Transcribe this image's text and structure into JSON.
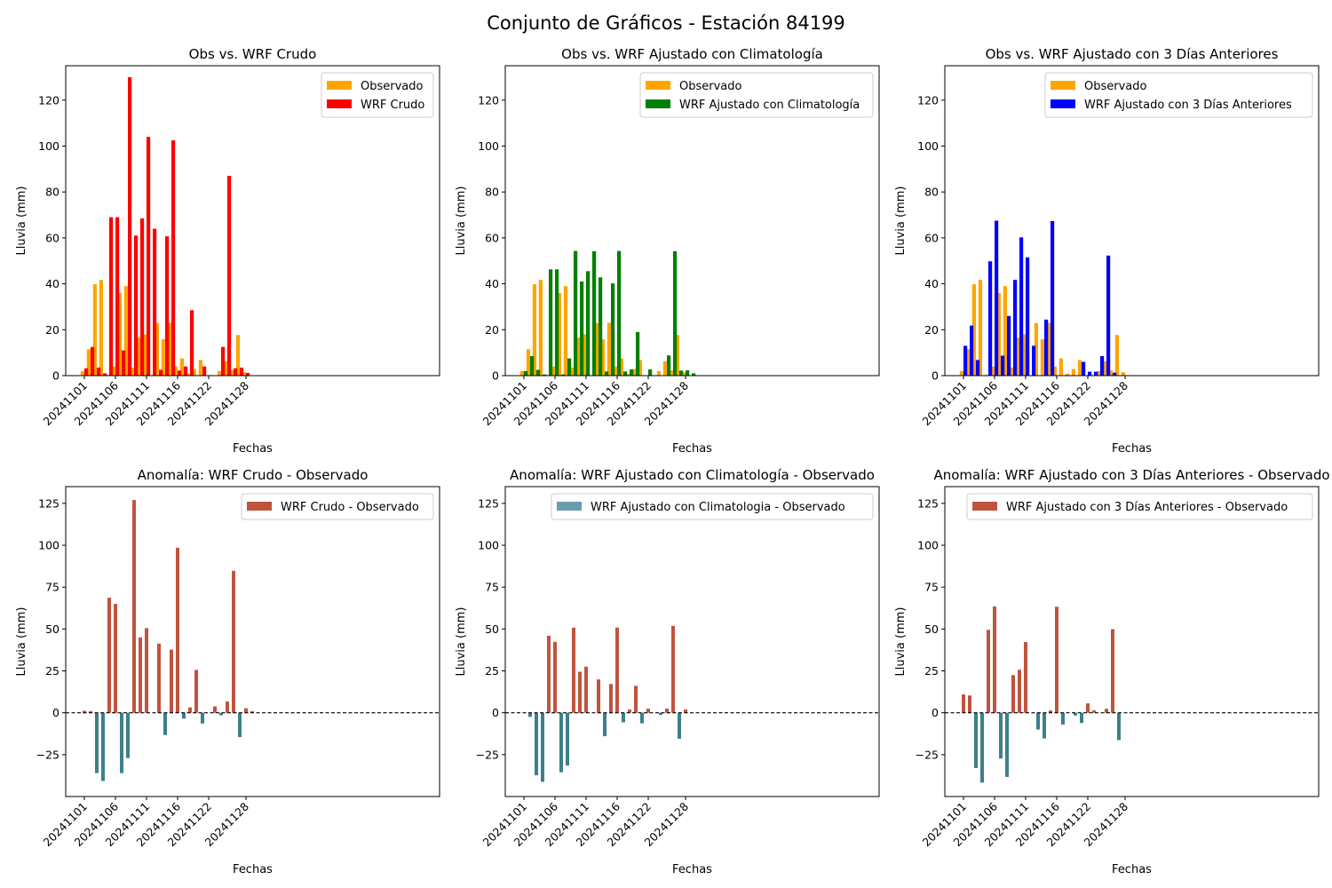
{
  "page": {
    "title": "Conjunto de Gráficos - Estación 84199"
  },
  "colors": {
    "observado": "#FFA500",
    "wrf_crudo": "#FF0000",
    "wrf_clima": "#008000",
    "wrf_3dias": "#0000FF",
    "anomaly_positive": "#C0533E",
    "anomaly_negative": "#3D7F8C",
    "legend_swatch_clima_anomaly": "#6A9DAB"
  },
  "chart_data": [
    {
      "type": "bar",
      "title": "Obs vs. WRF Crudo",
      "xlabel": "Fechas",
      "ylabel": "Lluvia (mm)",
      "ylim": [
        0,
        135
      ],
      "yticks": [
        "0",
        "20",
        "40",
        "60",
        "80",
        "100",
        "120"
      ],
      "xtick_labels": [
        "20241101",
        "20241106",
        "20241111",
        "20241116",
        "20241122",
        "20241128"
      ],
      "legend_position": "top-right",
      "series": [
        {
          "name": "Observado",
          "color_key": "observado",
          "values": [
            2,
            11.5,
            39.8,
            41.7,
            0.3,
            4,
            36,
            39,
            3.5,
            16.5,
            18,
            0,
            22.9,
            15.8,
            23,
            4,
            7.5,
            0.8,
            2.9,
            6.8,
            0,
            0.2,
            2,
            6.3,
            2.3,
            17.7,
            1.5,
            0
          ]
        },
        {
          "name": "WRF Crudo",
          "color_key": "wrf_crudo",
          "values": [
            3.2,
            12.5,
            3.5,
            1,
            69,
            69,
            11,
            130,
            61,
            68.5,
            104,
            64,
            2.5,
            60.7,
            102.5,
            2.2,
            4,
            28.5,
            0,
            4,
            0.2,
            0,
            12.5,
            87,
            3.2,
            3.5,
            1.2,
            0
          ]
        }
      ]
    },
    {
      "type": "bar",
      "title": "Obs vs. WRF Ajustado con Climatología",
      "xlabel": "Fechas",
      "ylabel": "Lluvia (mm)",
      "ylim": [
        0,
        135
      ],
      "yticks": [
        "0",
        "20",
        "40",
        "60",
        "80",
        "100",
        "120"
      ],
      "xtick_labels": [
        "20241101",
        "20241106",
        "20241111",
        "20241116",
        "20241122",
        "20241128"
      ],
      "legend_position": "top-right",
      "series": [
        {
          "name": "Observado",
          "color_key": "observado",
          "values": [
            2,
            11.5,
            39.8,
            41.7,
            0.3,
            4,
            36,
            39,
            3.5,
            16.5,
            18,
            0,
            22.9,
            15.8,
            23,
            4,
            7.5,
            0.8,
            2.9,
            6.8,
            0,
            0.2,
            2,
            6.3,
            2.3,
            17.7,
            1.5,
            0
          ]
        },
        {
          "name": "WRF Ajustado con Climatología",
          "color_key": "wrf_clima",
          "values": [
            2,
            8.5,
            2.5,
            0.5,
            46.3,
            46.3,
            0.5,
            7.5,
            54.3,
            41,
            45.5,
            54.2,
            42.8,
            1.8,
            40.2,
            54.3,
            1.8,
            2.7,
            19,
            0,
            2.7,
            0,
            0,
            8.8,
            54.2,
            2.2,
            2.3,
            1
          ]
        }
      ]
    },
    {
      "type": "bar",
      "title": "Obs vs. WRF Ajustado con 3 Días Anteriores",
      "xlabel": "Fechas",
      "ylabel": "Lluvia (mm)",
      "ylim": [
        0,
        135
      ],
      "yticks": [
        "0",
        "20",
        "40",
        "60",
        "80",
        "100",
        "120"
      ],
      "xtick_labels": [
        "20241101",
        "20241106",
        "20241111",
        "20241116",
        "20241122",
        "20241128"
      ],
      "legend_position": "top-right",
      "series": [
        {
          "name": "Observado",
          "color_key": "observado",
          "values": [
            2,
            11.5,
            39.8,
            41.7,
            0.3,
            4,
            36,
            39,
            3.5,
            16.5,
            18,
            0,
            22.9,
            15.8,
            23,
            4,
            7.5,
            0.8,
            2.9,
            6.8,
            0,
            0.2,
            2,
            6.3,
            2.3,
            17.7,
            1.5,
            0
          ]
        },
        {
          "name": "WRF Ajustado con 3 Días Anteriores",
          "color_key": "wrf_3dias",
          "values": [
            13,
            21.8,
            6.8,
            0,
            49.8,
            67.5,
            8.7,
            26,
            41.7,
            60.2,
            51.5,
            13,
            0,
            24.4,
            67.3,
            0,
            0,
            0,
            0,
            6,
            1.7,
            1.7,
            8.5,
            52.3,
            1.3,
            0,
            0,
            0
          ]
        }
      ]
    },
    {
      "type": "bar",
      "title": "Anomalía: WRF Crudo - Observado",
      "xlabel": "Fechas",
      "ylabel": "Lluvia (mm)",
      "ylim": [
        -50,
        135
      ],
      "yticks": [
        "−25",
        "0",
        "25",
        "50",
        "75",
        "100",
        "125"
      ],
      "xtick_labels": [
        "20241101",
        "20241106",
        "20241111",
        "20241116",
        "20241122",
        "20241128"
      ],
      "legend_position": "top-right",
      "zero_line": "dashed",
      "legend_color_key": "anomaly_positive",
      "series": [
        {
          "name": "WRF Crudo - Observado",
          "values": [
            1.2,
            1,
            -36,
            -40.7,
            68.7,
            65,
            -36,
            -27,
            127,
            45,
            50.5,
            0,
            41.3,
            -13.3,
            37.7,
            98.5,
            -3.5,
            3.2,
            25.6,
            -6.4,
            0,
            3.8,
            -1.5,
            6.7,
            84.7,
            -14.5,
            2.7,
            1
          ]
        }
      ]
    },
    {
      "type": "bar",
      "title": "Anomalía: WRF Ajustado con Climatología - Observado",
      "xlabel": "Fechas",
      "ylabel": "Lluvia (mm)",
      "ylim": [
        -50,
        135
      ],
      "yticks": [
        "−25",
        "0",
        "25",
        "50",
        "75",
        "100",
        "125"
      ],
      "xtick_labels": [
        "20241101",
        "20241106",
        "20241111",
        "20241116",
        "20241122",
        "20241128"
      ],
      "legend_position": "top-right",
      "zero_line": "dashed",
      "legend_color_key": "legend_swatch_clima_anomaly",
      "series": [
        {
          "name": "WRF Ajustado con Climatologia - Observado",
          "values": [
            0,
            -2.5,
            -37.3,
            -41.2,
            46,
            42.3,
            -35.5,
            -31.5,
            50.8,
            24.5,
            27.5,
            0,
            19.9,
            -14,
            17.2,
            50.9,
            -5.7,
            1.9,
            16.1,
            -6.3,
            2.5,
            0,
            -1.3,
            2.5,
            51.9,
            -15.5,
            2,
            0
          ]
        }
      ]
    },
    {
      "type": "bar",
      "title": "Anomalía: WRF Ajustado con 3 Días Anteriores - Observado",
      "xlabel": "Fechas",
      "ylabel": "Lluvia (mm)",
      "ylim": [
        -50,
        135
      ],
      "yticks": [
        "−25",
        "0",
        "25",
        "50",
        "75",
        "100",
        "125"
      ],
      "xtick_labels": [
        "20241101",
        "20241106",
        "20241111",
        "20241116",
        "20241122",
        "20241128"
      ],
      "legend_position": "top-right",
      "zero_line": "dashed",
      "legend_color_key": "anomaly_positive",
      "series": [
        {
          "name": "WRF Ajustado con 3 Días Anteriores - Observado",
          "values": [
            11,
            10.3,
            -33,
            -41.7,
            49.5,
            63.5,
            -27.3,
            -38.3,
            22.5,
            25.7,
            42.2,
            0,
            -10,
            -15.3,
            1.4,
            63.3,
            -7,
            0,
            -1.6,
            -6.1,
            5.6,
            1.5,
            0,
            2.4,
            49.9,
            -16.3,
            0,
            0
          ]
        }
      ]
    }
  ]
}
